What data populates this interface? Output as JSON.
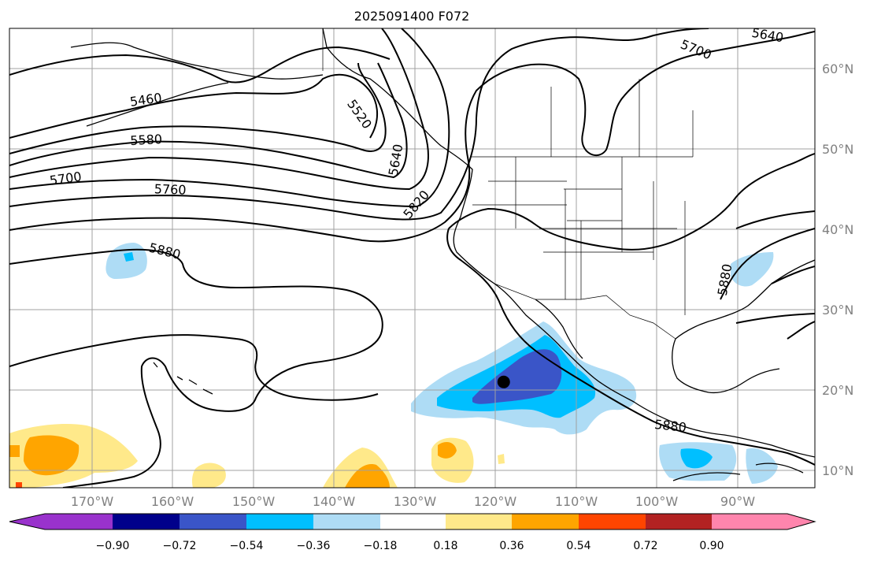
{
  "title": "2025091400 F072",
  "longitude_labels": [
    "170°W",
    "160°W",
    "150°W",
    "140°W",
    "130°W",
    "120°W",
    "110°W",
    "100°W",
    "90°W"
  ],
  "latitude_labels": [
    "60°N",
    "50°N",
    "40°N",
    "30°N",
    "20°N",
    "10°N"
  ],
  "contour_labels": [
    "5460",
    "5520",
    "5580",
    "5640",
    "5640",
    "5700",
    "5700",
    "5760",
    "5820",
    "5880",
    "5880",
    "5880"
  ],
  "colorbar": {
    "tick_labels": [
      "−0.90",
      "−0.72",
      "−0.54",
      "−0.36",
      "−0.18",
      "0.18",
      "0.36",
      "0.54",
      "0.72",
      "0.90"
    ],
    "colors": [
      "#9932cc",
      "#00008b",
      "#3a55c8",
      "#00bfff",
      "#aedcf5",
      "#ffffff",
      "#ffe98a",
      "#ffa500",
      "#ff4500",
      "#b22222",
      "#ff85ad"
    ]
  },
  "marker": {
    "lon": -119,
    "lat": 21,
    "color": "#000000"
  }
}
